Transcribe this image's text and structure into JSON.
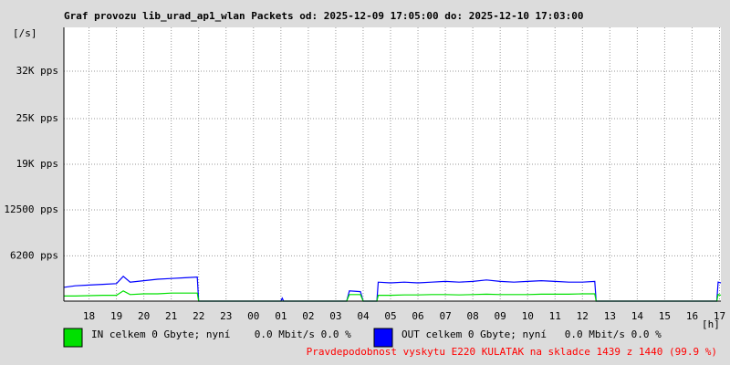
{
  "chart_data": {
    "type": "line",
    "title": "Graf provozu lib_urad_ap1_wlan Packets od: 2025-12-09 17:05:00 do: 2025-12-10 17:03:00",
    "ylabel": "[/s]",
    "xlabel": "[h]",
    "footer": "Pravdepodobnost vyskytu E220 KULATAK na skladce 1439 z 1440 (99.9 %)",
    "grid": true,
    "xlim": [
      17.083,
      41.05
    ],
    "ylim": [
      0,
      37500
    ],
    "yticks": [
      {
        "value": 6200,
        "label": "6200 pps"
      },
      {
        "value": 12500,
        "label": "12500 pps"
      },
      {
        "value": 18750,
        "label": "19K pps"
      },
      {
        "value": 25000,
        "label": "25K pps"
      },
      {
        "value": 31500,
        "label": "32K pps"
      }
    ],
    "xticks": [
      {
        "value": 18,
        "label": "18"
      },
      {
        "value": 19,
        "label": "19"
      },
      {
        "value": 20,
        "label": "20"
      },
      {
        "value": 21,
        "label": "21"
      },
      {
        "value": 22,
        "label": "22"
      },
      {
        "value": 23,
        "label": "23"
      },
      {
        "value": 24,
        "label": "00"
      },
      {
        "value": 25,
        "label": "01"
      },
      {
        "value": 26,
        "label": "02"
      },
      {
        "value": 27,
        "label": "03"
      },
      {
        "value": 28,
        "label": "04"
      },
      {
        "value": 29,
        "label": "05"
      },
      {
        "value": 30,
        "label": "06"
      },
      {
        "value": 31,
        "label": "07"
      },
      {
        "value": 32,
        "label": "08"
      },
      {
        "value": 33,
        "label": "09"
      },
      {
        "value": 34,
        "label": "10"
      },
      {
        "value": 35,
        "label": "11"
      },
      {
        "value": 36,
        "label": "12"
      },
      {
        "value": 37,
        "label": "13"
      },
      {
        "value": 38,
        "label": "14"
      },
      {
        "value": 39,
        "label": "15"
      },
      {
        "value": 40,
        "label": "16"
      },
      {
        "value": 41,
        "label": "17"
      }
    ],
    "x": [
      17.1,
      17.5,
      18,
      18.5,
      19,
      19.25,
      19.5,
      20,
      20.5,
      21,
      21.5,
      21.95,
      22.0,
      25.0,
      25.05,
      25.1,
      27.4,
      27.5,
      27.9,
      28.0,
      28.5,
      28.55,
      29,
      29.5,
      30,
      30.5,
      31,
      31.5,
      32,
      32.5,
      33,
      33.5,
      34,
      34.5,
      35,
      35.5,
      36,
      36.45,
      36.5,
      40.9,
      40.95,
      41.05
    ],
    "series": [
      {
        "name": "OUT celkem 0 Gbyte; nyní   0.0 Mbit/s 0.0 %",
        "color": "#0000ff",
        "values": [
          1900,
          2100,
          2200,
          2300,
          2400,
          3400,
          2600,
          2800,
          3000,
          3100,
          3200,
          3300,
          0,
          0,
          400,
          0,
          0,
          1400,
          1300,
          0,
          0,
          2600,
          2500,
          2600,
          2500,
          2600,
          2700,
          2600,
          2700,
          2900,
          2700,
          2600,
          2700,
          2800,
          2700,
          2600,
          2600,
          2700,
          0,
          0,
          2600,
          2500
        ]
      },
      {
        "name": "IN celkem 0 Gbyte; nyní    0.0 Mbit/s 0.0 %",
        "color": "#00e000",
        "values": [
          700,
          700,
          750,
          800,
          800,
          1400,
          900,
          1000,
          1000,
          1100,
          1100,
          1100,
          0,
          0,
          0,
          0,
          0,
          900,
          900,
          0,
          0,
          800,
          800,
          850,
          850,
          900,
          900,
          850,
          900,
          950,
          900,
          900,
          900,
          950,
          950,
          950,
          1000,
          1000,
          0,
          0,
          900,
          800
        ]
      }
    ]
  }
}
